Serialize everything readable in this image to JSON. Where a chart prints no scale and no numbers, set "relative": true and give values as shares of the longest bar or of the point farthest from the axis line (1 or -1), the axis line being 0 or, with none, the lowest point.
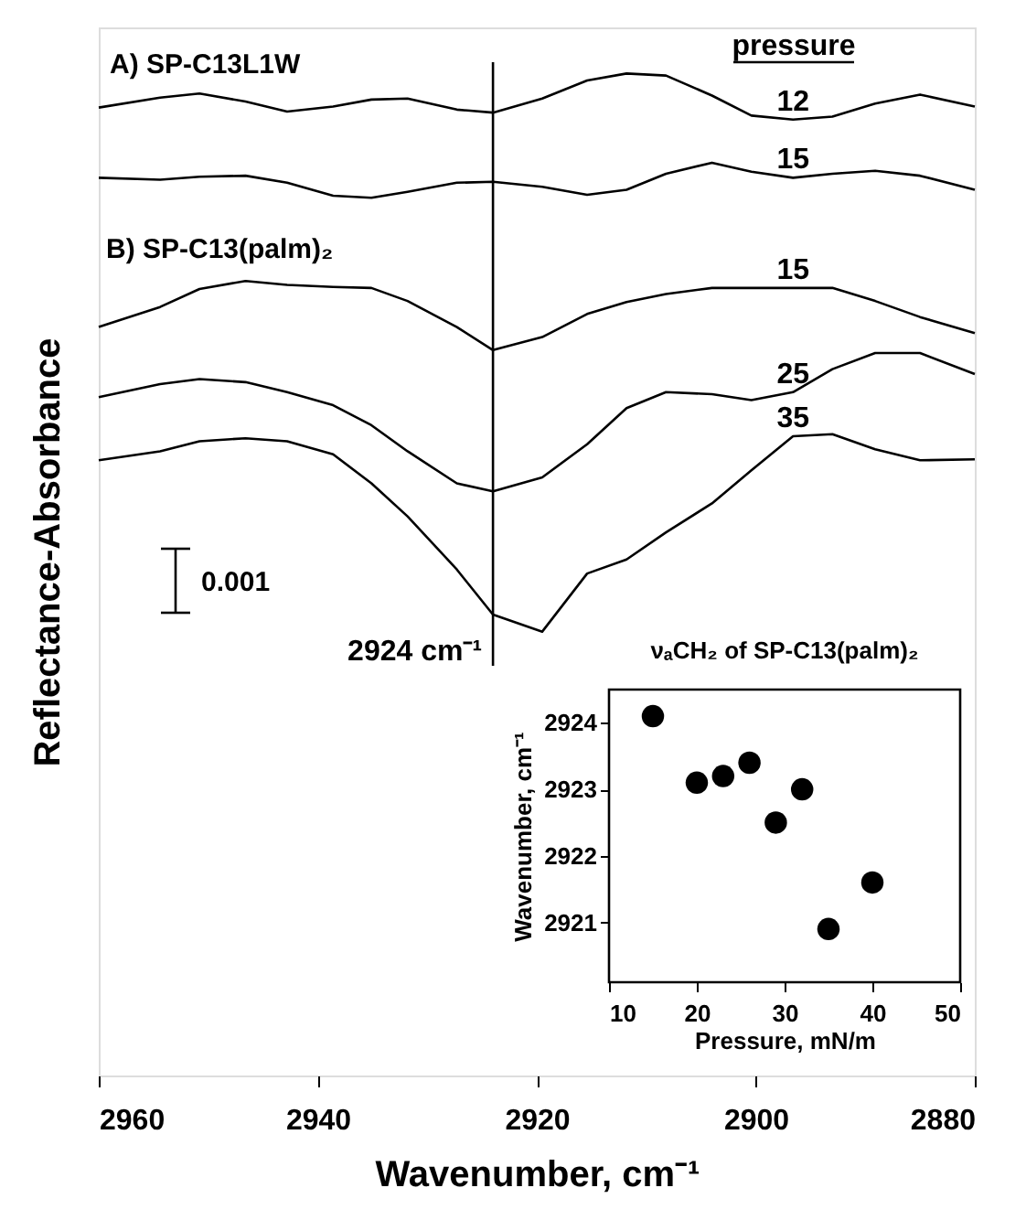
{
  "chart_data": [
    {
      "type": "line",
      "xlabel": "Wavenumber, cm⁻¹",
      "ylabel": "Reflectance-Absorbance",
      "legend_title": "pressure",
      "relative": true,
      "xlim": [
        2960,
        2880
      ],
      "xticks": [
        2960,
        2940,
        2920,
        2900,
        2880
      ],
      "grid": false,
      "legend": "top right",
      "marker": "none",
      "line_style": "solid",
      "x": [
        2960,
        2954.4,
        2950.8,
        2946.6,
        2942.8,
        2938.6,
        2935.1,
        2931.8,
        2927.3,
        2924,
        2919.5,
        2915.4,
        2911.8,
        2908.2,
        2904,
        2900.4,
        2896.6,
        2893,
        2889.1,
        2885,
        2880
      ],
      "series": [
        {
          "name": "12",
          "color": "#000000",
          "values": [
            0.966,
            0.976,
            0.98,
            0.972,
            0.962,
            0.967,
            0.974,
            0.975,
            0.964,
            0.961,
            0.975,
            0.993,
            1.0,
            0.998,
            0.978,
            0.958,
            0.954,
            0.957,
            0.97,
            0.979,
            0.967
          ]
        },
        {
          "name": "15",
          "color": "#000000",
          "values": [
            0.896,
            0.894,
            0.897,
            0.898,
            0.891,
            0.878,
            0.876,
            0.882,
            0.891,
            0.892,
            0.887,
            0.879,
            0.884,
            0.9,
            0.911,
            0.902,
            0.896,
            0.9,
            0.903,
            0.898,
            0.884
          ]
        },
        {
          "name": "15",
          "color": "#000000",
          "values": [
            0.747,
            0.767,
            0.785,
            0.793,
            0.789,
            0.787,
            0.786,
            0.773,
            0.747,
            0.724,
            0.737,
            0.76,
            0.772,
            0.78,
            0.786,
            0.786,
            0.786,
            0.786,
            0.773,
            0.757,
            0.741
          ]
        },
        {
          "name": "25",
          "color": "#000000",
          "values": [
            0.677,
            0.69,
            0.695,
            0.692,
            0.682,
            0.669,
            0.649,
            0.623,
            0.591,
            0.583,
            0.597,
            0.63,
            0.666,
            0.682,
            0.68,
            0.674,
            0.682,
            0.705,
            0.721,
            0.721,
            0.7
          ]
        },
        {
          "name": "35",
          "color": "#000000",
          "values": [
            0.614,
            0.623,
            0.633,
            0.636,
            0.633,
            0.62,
            0.591,
            0.558,
            0.505,
            0.46,
            0.443,
            0.501,
            0.515,
            0.542,
            0.571,
            0.604,
            0.638,
            0.64,
            0.625,
            0.614,
            0.615
          ]
        }
      ],
      "ref_lines": [
        {
          "axis": "x",
          "value": 2924,
          "label": "2924 cm⁻¹",
          "color": "#000000",
          "line_style": "solid"
        }
      ],
      "annotations": [
        "A) SP-C13L1W",
        "B) SP-C13(palm)₂",
        "0.001"
      ]
    },
    {
      "type": "scatter",
      "title": "νₐCH₂ of SP-C13(palm)₂",
      "xlabel": "Pressure, mN/m",
      "ylabel": "Wavenumber, cm⁻¹",
      "x": [
        15,
        20,
        23,
        26,
        29,
        32,
        35,
        40
      ],
      "values": [
        2924.1,
        2923.1,
        2923.2,
        2923.4,
        2922.5,
        2923.0,
        2920.9,
        2921.6
      ],
      "color": "#000000",
      "xlim": [
        10,
        50
      ],
      "ylim": [
        2920.1,
        2924.5
      ],
      "xticks": [
        10,
        20,
        30,
        40,
        50
      ],
      "yticks": [
        2921,
        2922,
        2923,
        2924
      ],
      "marker": "circle",
      "grid": false
    }
  ]
}
